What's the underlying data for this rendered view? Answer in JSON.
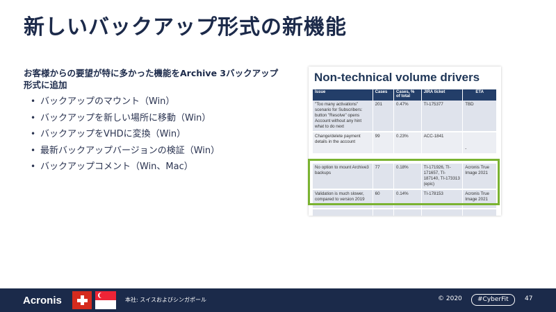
{
  "slide": {
    "title": "新しいバックアップ形式の新機能",
    "intro": "お客様からの要望が特に多かった機能をArchive 3バックアップ形式に追加",
    "bullets": [
      "バックアップのマウント（Win）",
      "バックアップを新しい場所に移動（Win）",
      "バックアップをVHDに変換（Win）",
      "最新バックアップバージョンの検証（Win）",
      "バックアップコメント（Win、Mac）"
    ]
  },
  "screenshot": {
    "title": "Non-technical volume drivers",
    "headers": [
      "Issue",
      "Cases",
      "Cases, % of total",
      "JIRA ticket",
      "ETA"
    ],
    "rows": [
      [
        "\"Too many activations\" scenario for Subscribers: button \"Resolve\" opens Account without any hint what to do next",
        "201",
        "0.47%",
        "TI-175377",
        "TBD"
      ],
      [
        "Change/delete payment details in the account",
        "99",
        "0.23%",
        "ACC-1841",
        "-"
      ],
      [
        "No option to mount Archive3 backups",
        "77",
        "0.18%",
        "TI-171926, TI-171657, TI-187140, TI-173313 (epic)",
        "Acronis True Image 2021"
      ],
      [
        "Validation is much slower, compared to version 2019",
        "60",
        "0.14%",
        "TI-178153",
        "Acronis True Image 2021"
      ]
    ],
    "highlight_color": "#7ab331"
  },
  "footer": {
    "logo": "Acronis",
    "hq": "本社: スイスおよびシンガポール",
    "copyright": "© 2020",
    "hashtag": "#CyberFit",
    "page": "47",
    "bg_color": "#1b2a4a"
  }
}
